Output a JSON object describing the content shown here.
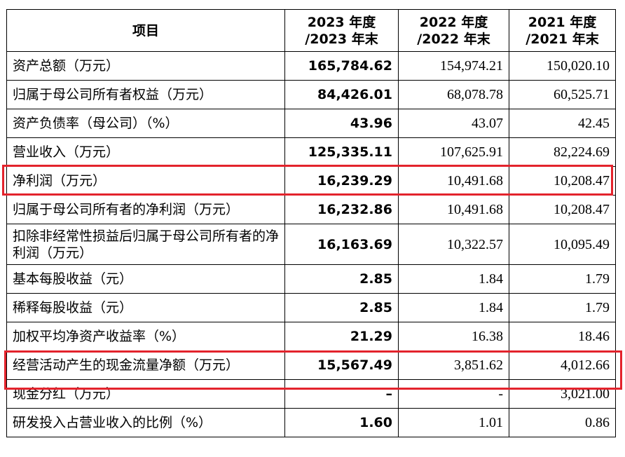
{
  "headers": {
    "item": "项目",
    "y2023": [
      "2023 年度",
      "/2023 年末"
    ],
    "y2022": [
      "2022 年度",
      "/2022 年末"
    ],
    "y2021": [
      "2021 年度",
      "/2021 年末"
    ]
  },
  "rows": [
    {
      "label": "资产总额（万元）",
      "v2023": "165,784.62",
      "v2022": "154,974.21",
      "v2021": "150,020.10"
    },
    {
      "label": "归属于母公司所有者权益（万元）",
      "v2023": "84,426.01",
      "v2022": "68,078.78",
      "v2021": "60,525.71"
    },
    {
      "label": "资产负债率（母公司）（%）",
      "v2023": "43.96",
      "v2022": "43.07",
      "v2021": "42.45"
    },
    {
      "label": "营业收入（万元）",
      "v2023": "125,335.11",
      "v2022": "107,625.91",
      "v2021": "82,224.69"
    },
    {
      "label": "净利润（万元）",
      "v2023": "16,239.29",
      "v2022": "10,491.68",
      "v2021": "10,208.47"
    },
    {
      "label": "归属于母公司所有者的净利润（万元）",
      "v2023": "16,232.86",
      "v2022": "10,491.68",
      "v2021": "10,208.47"
    },
    {
      "label": "扣除非经常性损益后归属于母公司所有者的净利润（万元）",
      "v2023": "16,163.69",
      "v2022": "10,322.57",
      "v2021": "10,095.49"
    },
    {
      "label": "基本每股收益（元）",
      "v2023": "2.85",
      "v2022": "1.84",
      "v2021": "1.79"
    },
    {
      "label": "稀释每股收益（元）",
      "v2023": "2.85",
      "v2022": "1.84",
      "v2021": "1.79"
    },
    {
      "label": "加权平均净资产收益率（%）",
      "v2023": "21.29",
      "v2022": "16.38",
      "v2021": "18.46"
    },
    {
      "label": "经营活动产生的现金流量净额（万元）",
      "v2023": "15,567.49",
      "v2022": "3,851.62",
      "v2021": "4,012.66"
    },
    {
      "label": "现金分红（万元）",
      "v2023": "–",
      "v2022": "-",
      "v2021": "3,021.00"
    },
    {
      "label": "研发投入占营业收入的比例（%）",
      "v2023": "1.60",
      "v2022": "1.01",
      "v2021": "0.86"
    }
  ],
  "highlight_color": "#e3232c"
}
